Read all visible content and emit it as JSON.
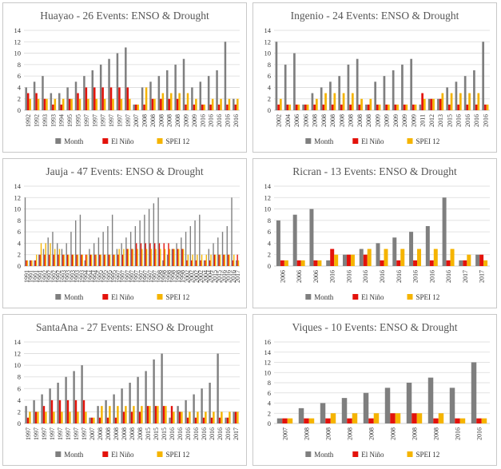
{
  "colors": {
    "month": "#7f7f7f",
    "elnino": "#e3120b",
    "spei": "#f5b400"
  },
  "legend": {
    "month": "Month",
    "elnino": "El Niño",
    "spei": "SPEI 12"
  },
  "chart_data": [
    {
      "type": "bar",
      "title": "Huayao - 26 Events: ENSO & Drought",
      "ylim": [
        0,
        14
      ],
      "yticks": [
        0,
        2,
        4,
        6,
        8,
        10,
        12,
        14
      ],
      "categories": [
        "1992",
        "1992",
        "1993",
        "1993",
        "1994",
        "1995",
        "1995",
        "1997",
        "1997",
        "1997",
        "1997",
        "1997",
        "1997",
        "2007",
        "2008",
        "2008",
        "2008",
        "2008",
        "2008",
        "2009",
        "2009",
        "2016",
        "2016",
        "2016",
        "2016",
        "2016"
      ],
      "series": [
        {
          "name": "Month",
          "values": [
            4,
            5,
            6,
            3,
            3,
            4,
            5,
            6,
            7,
            8,
            9,
            10,
            11,
            1,
            4,
            5,
            6,
            7,
            8,
            9,
            4,
            5,
            6,
            7,
            12,
            2
          ]
        },
        {
          "name": "El Niño",
          "values": [
            3,
            3,
            2,
            1,
            1,
            2,
            3,
            4,
            4,
            4,
            4,
            4,
            4,
            1,
            1,
            2,
            2,
            2,
            2,
            1,
            1,
            1,
            1,
            1,
            1,
            1
          ]
        },
        {
          "name": "SPEI 12",
          "values": [
            2,
            2,
            2,
            2,
            2,
            2,
            2,
            2,
            2,
            2,
            2,
            2,
            2,
            1,
            4,
            2,
            3,
            3,
            3,
            3,
            2,
            1,
            2,
            2,
            2,
            2
          ]
        }
      ]
    },
    {
      "type": "bar",
      "title": "Ingenio - 24 Events: ENSO & Drought",
      "ylim": [
        0,
        14
      ],
      "yticks": [
        0,
        2,
        4,
        6,
        8,
        10,
        12,
        14
      ],
      "categories": [
        "2002",
        "2004",
        "2006",
        "2006",
        "2008",
        "2008",
        "2008",
        "2008",
        "2008",
        "2008",
        "2008",
        "2009",
        "2009",
        "2009",
        "2009",
        "2009",
        "2011",
        "2012",
        "2013",
        "2015",
        "2016",
        "2016",
        "2016",
        "2016"
      ],
      "series": [
        {
          "name": "Month",
          "values": [
            12,
            8,
            10,
            1,
            3,
            4,
            5,
            6,
            8,
            9,
            1,
            5,
            6,
            7,
            8,
            9,
            1,
            2,
            2,
            4,
            5,
            6,
            7,
            12
          ]
        },
        {
          "name": "El Niño",
          "values": [
            1,
            1,
            1,
            1,
            1,
            1,
            1,
            1,
            1,
            1,
            1,
            1,
            1,
            1,
            1,
            1,
            3,
            2,
            2,
            1,
            1,
            1,
            1,
            1
          ]
        },
        {
          "name": "SPEI 12",
          "values": [
            2,
            1,
            1,
            1,
            2,
            3,
            3,
            3,
            3,
            2,
            2,
            1,
            1,
            1,
            1,
            1,
            2,
            2,
            3,
            3,
            3,
            3,
            3,
            1
          ]
        }
      ]
    },
    {
      "type": "bar",
      "title": "Jauja - 47 Events: ENSO & Drought",
      "ylim": [
        0,
        14
      ],
      "yticks": [
        0,
        2,
        4,
        6,
        8,
        10,
        12,
        14
      ],
      "categories": [
        "1991",
        "1991",
        "1991",
        "1991",
        "1992",
        "1992",
        "1992",
        "1992",
        "1993",
        "1993",
        "1993",
        "1993",
        "1993",
        "1994",
        "1994",
        "1994",
        "1995",
        "1995",
        "1995",
        "1995",
        "1997",
        "1997",
        "1997",
        "1997",
        "1997",
        "1997",
        "1997",
        "1997",
        "1997",
        "1998",
        "1998",
        "1998",
        "1998",
        "1998",
        "1998",
        "2002",
        "2002",
        "2002",
        "2002",
        "2004",
        "2004",
        "2015",
        "2015",
        "2016",
        "2016",
        "2016",
        "2017"
      ],
      "series": [
        {
          "name": "Month",
          "values": [
            12,
            1,
            1,
            2,
            3,
            5,
            6,
            4,
            3,
            4,
            6,
            8,
            9,
            1,
            3,
            4,
            5,
            6,
            7,
            9,
            3,
            4,
            5,
            6,
            7,
            8,
            9,
            10,
            11,
            12,
            1,
            2,
            3,
            4,
            5,
            6,
            7,
            8,
            9,
            1,
            3,
            4,
            5,
            6,
            7,
            12,
            1
          ]
        },
        {
          "name": "El Niño",
          "values": [
            1,
            1,
            1,
            2,
            2,
            2,
            2,
            2,
            2,
            2,
            2,
            2,
            2,
            2,
            2,
            2,
            2,
            2,
            2,
            2,
            2,
            2,
            3,
            3,
            4,
            4,
            4,
            4,
            4,
            4,
            4,
            4,
            3,
            3,
            3,
            1,
            1,
            1,
            1,
            1,
            1,
            2,
            2,
            2,
            2,
            1,
            2
          ]
        },
        {
          "name": "SPEI 12",
          "values": [
            1,
            1,
            2,
            4,
            4,
            4,
            3,
            3,
            2,
            2,
            2,
            2,
            2,
            2,
            2,
            2,
            2,
            2,
            2,
            2,
            3,
            3,
            3,
            3,
            3,
            3,
            3,
            3,
            3,
            3,
            3,
            3,
            3,
            3,
            3,
            2,
            2,
            2,
            2,
            2,
            2,
            2,
            2,
            2,
            2,
            2,
            1
          ]
        }
      ]
    },
    {
      "type": "bar",
      "title": "Ricran - 13 Events: ENSO & Drought",
      "ylim": [
        0,
        14
      ],
      "yticks": [
        0,
        2,
        4,
        6,
        8,
        10,
        12,
        14
      ],
      "categories": [
        "2006",
        "2006",
        "2006",
        "2016",
        "2016",
        "2016",
        "2016",
        "2016",
        "2016",
        "2016",
        "2016",
        "2017",
        "2017"
      ],
      "series": [
        {
          "name": "Month",
          "values": [
            8,
            9,
            10,
            1,
            2,
            3,
            4,
            5,
            6,
            7,
            12,
            1,
            2
          ]
        },
        {
          "name": "El Niño",
          "values": [
            1,
            1,
            1,
            3,
            2,
            2,
            1,
            1,
            1,
            1,
            1,
            1,
            2
          ]
        },
        {
          "name": "SPEI 12",
          "values": [
            1,
            1,
            1,
            2,
            2,
            3,
            3,
            3,
            3,
            3,
            3,
            2,
            1
          ]
        }
      ]
    },
    {
      "type": "bar",
      "title": "SantaAna - 27 Events: ENSO & Drought",
      "ylim": [
        0,
        14
      ],
      "yticks": [
        0,
        2,
        4,
        6,
        8,
        10,
        12,
        14
      ],
      "categories": [
        "1997",
        "1997",
        "1997",
        "1997",
        "1997",
        "1997",
        "1997",
        "1997",
        "2007",
        "2008",
        "2008",
        "2008",
        "2008",
        "2008",
        "2008",
        "2015",
        "2015",
        "2015",
        "2016",
        "2016",
        "2016",
        "2016",
        "2016",
        "2016",
        "2016",
        "2016",
        "2017"
      ],
      "series": [
        {
          "name": "Month",
          "values": [
            3,
            4,
            5,
            6,
            7,
            8,
            9,
            10,
            1,
            3,
            4,
            5,
            6,
            7,
            8,
            9,
            11,
            12,
            1,
            3,
            4,
            5,
            6,
            7,
            12,
            1,
            2
          ]
        },
        {
          "name": "El Niño",
          "values": [
            1,
            2,
            3,
            4,
            4,
            4,
            4,
            4,
            1,
            1,
            1,
            1,
            2,
            2,
            2,
            3,
            3,
            3,
            3,
            2,
            1,
            1,
            1,
            1,
            1,
            1,
            2
          ]
        },
        {
          "name": "SPEI 12",
          "values": [
            2,
            2,
            2,
            2,
            2,
            2,
            2,
            2,
            1,
            3,
            3,
            3,
            3,
            3,
            3,
            3,
            3,
            3,
            2,
            2,
            2,
            2,
            2,
            2,
            2,
            2,
            2
          ]
        }
      ]
    },
    {
      "type": "bar",
      "title": "Viques - 10 Events: ENSO & Drought",
      "ylim": [
        0,
        16
      ],
      "yticks": [
        0,
        2,
        4,
        6,
        8,
        10,
        12,
        14,
        16
      ],
      "categories": [
        "2007",
        "2008",
        "2008",
        "2008",
        "2008",
        "2008",
        "2008",
        "2008",
        "2016",
        "2016"
      ],
      "series": [
        {
          "name": "Month",
          "values": [
            1,
            3,
            4,
            5,
            6,
            7,
            8,
            9,
            7,
            12
          ]
        },
        {
          "name": "El Niño",
          "values": [
            1,
            1,
            1,
            1,
            1,
            2,
            2,
            1,
            1,
            1
          ]
        },
        {
          "name": "SPEI 12",
          "values": [
            1,
            1,
            2,
            2,
            2,
            2,
            2,
            2,
            1,
            1
          ]
        }
      ]
    }
  ]
}
